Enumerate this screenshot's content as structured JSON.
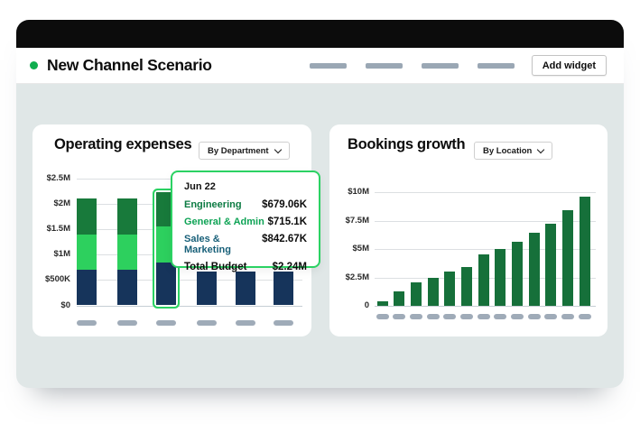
{
  "header": {
    "title": "New Channel Scenario",
    "status_dot_color": "#0fae4e",
    "nav_placeholder_count": 4,
    "add_widget_label": "Add widget"
  },
  "charts": [
    {
      "type": "stacked-bar",
      "title": "Operating expenses",
      "filter_label": "By Department",
      "y_ticks": [
        "$2.5M",
        "$2M",
        "$1.5M",
        "$1M",
        "$500K",
        "$0"
      ],
      "y_tick_values": [
        2.5,
        2,
        1.5,
        1,
        0.5,
        0
      ],
      "ylim": [
        0,
        2.5
      ],
      "unit": "USD, millions",
      "series_bottom_to_top": [
        "Sales & Marketing",
        "General & Admin",
        "Engineering"
      ],
      "series_colors": [
        "#16345b",
        "#2dd05e",
        "#187a3b"
      ],
      "bars": [
        {
          "segments": [
            0.71,
            0.68,
            0.72
          ]
        },
        {
          "segments": [
            0.71,
            0.68,
            0.72
          ]
        },
        {
          "segments": [
            0.8427,
            0.7151,
            0.6791
          ],
          "highlighted": true
        },
        {
          "segments": [
            0.67
          ],
          "note": "upper segments obscured by tooltip"
        },
        {
          "segments": [
            0.67
          ],
          "note": "upper segments obscured by tooltip"
        },
        {
          "segments": [
            0.67
          ],
          "note": "upper segments obscured by tooltip"
        }
      ],
      "x_placeholder_count": 6,
      "tooltip": {
        "date": "Jun 22",
        "rows": [
          {
            "label": "Engineering",
            "value": "$679.06K",
            "color": "#0c7b43"
          },
          {
            "label": "General & Admin",
            "value": "$715.1K",
            "color": "#0ea355"
          },
          {
            "label": "Sales & Marketing",
            "value": "$842.67K",
            "color": "#175f78"
          }
        ],
        "total_label": "Total Budget",
        "total_value": "$2.24M",
        "border_color": "#2bd263"
      }
    },
    {
      "type": "bar",
      "title": "Bookings growth",
      "filter_label": "By Location",
      "y_ticks": [
        "$10M",
        "$7.5M",
        "$5M",
        "$2.5M",
        "0"
      ],
      "y_tick_values": [
        10,
        7.5,
        5,
        2.5,
        0
      ],
      "ylim": [
        0,
        10
      ],
      "unit": "USD, millions",
      "bar_color": "#16703a",
      "values": [
        0.4,
        1.3,
        2.1,
        2.5,
        3.0,
        3.4,
        4.5,
        5.0,
        5.6,
        6.4,
        7.2,
        8.4,
        9.6
      ],
      "x_placeholder_count": 13
    }
  ]
}
